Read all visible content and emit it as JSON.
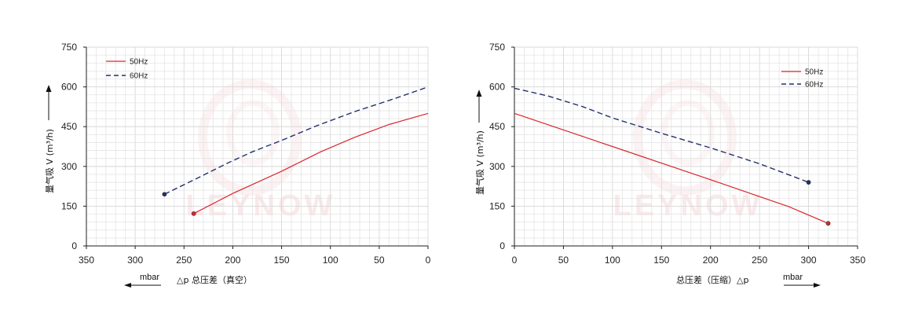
{
  "watermark": "LEYNOW",
  "chart_data": [
    {
      "type": "line",
      "xlabel": "△p 总压差（真空）",
      "xunit": "mbar",
      "ylabel": "量气吸 V (m³/h)",
      "xlim": [
        350,
        0
      ],
      "ylim": [
        0,
        750
      ],
      "x_ticks": [
        350,
        300,
        250,
        200,
        150,
        100,
        50,
        0
      ],
      "y_ticks": [
        0,
        150,
        300,
        450,
        600,
        750
      ],
      "grid": true,
      "legend_position": "top-left",
      "series": [
        {
          "name": "50Hz",
          "color": "#d9272e",
          "dashed": false,
          "x": [
            240,
            200,
            150,
            110,
            75,
            40,
            0
          ],
          "y": [
            122,
            198,
            282,
            355,
            410,
            458,
            500
          ]
        },
        {
          "name": "60Hz",
          "color": "#22306e",
          "dashed": true,
          "x": [
            270,
            235,
            205,
            180,
            150,
            115,
            75,
            35,
            0
          ],
          "y": [
            195,
            258,
            313,
            355,
            398,
            452,
            507,
            555,
            600
          ]
        }
      ]
    },
    {
      "type": "line",
      "xlabel": "总压差（压缩）△p",
      "xunit": "mbar",
      "ylabel": "量气吸 V (m³/h)",
      "xlim": [
        0,
        350
      ],
      "ylim": [
        0,
        750
      ],
      "x_ticks": [
        0,
        50,
        100,
        150,
        200,
        250,
        300,
        350
      ],
      "y_ticks": [
        0,
        150,
        300,
        450,
        600,
        750
      ],
      "grid": true,
      "legend_position": "top-right",
      "series": [
        {
          "name": "50Hz",
          "color": "#d9272e",
          "dashed": false,
          "x": [
            0,
            100,
            200,
            280,
            320
          ],
          "y": [
            500,
            375,
            250,
            148,
            85
          ]
        },
        {
          "name": "60Hz",
          "color": "#22306e",
          "dashed": true,
          "x": [
            0,
            35,
            70,
            100,
            150,
            200,
            250,
            300
          ],
          "y": [
            595,
            565,
            525,
            483,
            425,
            370,
            310,
            240
          ]
        }
      ]
    }
  ]
}
